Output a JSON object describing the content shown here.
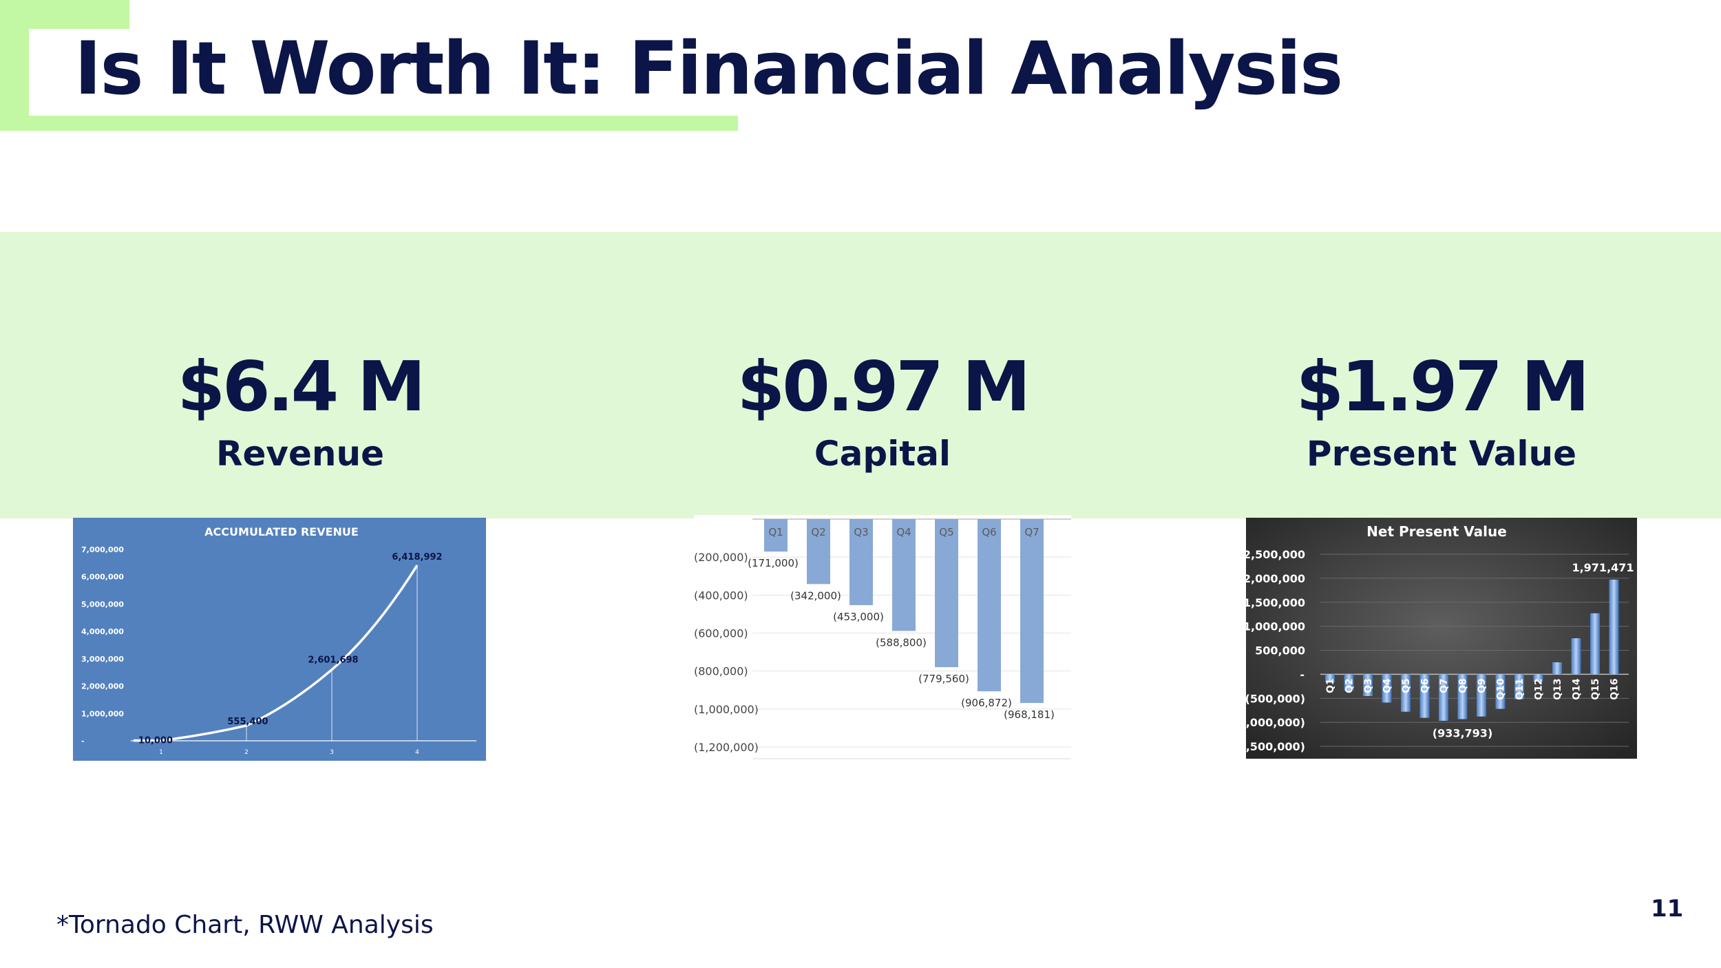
{
  "title": "Is It Worth It: Financial Analysis",
  "metrics": [
    {
      "value": "$6.4 M",
      "label": "Revenue"
    },
    {
      "value": "$0.97 M",
      "label": "Capital"
    },
    {
      "value": "$1.97 M",
      "label": "Present Value"
    }
  ],
  "footnote": "*Tornado Chart, RWW Analysis",
  "page_number": "11",
  "colors": {
    "navy": "#0b1547",
    "accent_green": "#c2f7a3",
    "band_green": "#e0f8d5",
    "revenue_bg": "#5381be",
    "bar_blue": "#88a9d5",
    "npv_bg": "#3a3a3a"
  },
  "chart_data": [
    {
      "type": "line",
      "title": "ACCUMULATED REVENUE",
      "x": [
        1,
        2,
        3,
        4
      ],
      "values": [
        10000,
        555400,
        2601698,
        6418992
      ],
      "data_labels": [
        "10,000",
        "555,400",
        "2,601,698",
        "6,418,992"
      ],
      "ylim": [
        0,
        7000000
      ],
      "yticks": [
        0,
        1000000,
        2000000,
        3000000,
        4000000,
        5000000,
        6000000,
        7000000
      ],
      "ytick_labels": [
        "-",
        "1,000,000",
        "2,000,000",
        "3,000,000",
        "4,000,000",
        "5,000,000",
        "6,000,000",
        "7,000,000"
      ],
      "xtick_labels": [
        "1",
        "2",
        "3",
        "4"
      ],
      "grid": false
    },
    {
      "type": "bar",
      "categories": [
        "Q1",
        "Q2",
        "Q3",
        "Q4",
        "Q5",
        "Q6",
        "Q7"
      ],
      "values": [
        -171000,
        -342000,
        -453000,
        -588800,
        -779560,
        -906872,
        -968181
      ],
      "data_labels": [
        "(171,000)",
        "(342,000)",
        "(453,000)",
        "(588,800)",
        "(779,560)",
        "(906,872)",
        "(968,181)"
      ],
      "ylim": [
        -1200000,
        0
      ],
      "yticks": [
        -200000,
        -400000,
        -600000,
        -800000,
        -1000000,
        -1200000
      ],
      "ytick_labels": [
        "(200,000)",
        "(400,000)",
        "(600,000)",
        "(800,000)",
        "(1,000,000)",
        "(1,200,000)"
      ],
      "grid": true
    },
    {
      "type": "bar",
      "title": "Net Present Value",
      "categories": [
        "Q1",
        "Q2",
        "Q3",
        "Q4",
        "Q5",
        "Q6",
        "Q7",
        "Q8",
        "Q9",
        "Q10",
        "Q11",
        "Q12",
        "Q13",
        "Q14",
        "Q15",
        "Q16"
      ],
      "values": [
        -171000,
        -342000,
        -453000,
        -588800,
        -779560,
        -906872,
        -968181,
        -933793,
        -880000,
        -720000,
        -520000,
        -150000,
        250000,
        750000,
        1270000,
        1971471
      ],
      "labeled_points": [
        {
          "category": "Q8",
          "label": "(933,793)"
        },
        {
          "category": "Q16",
          "label": "1,971,471"
        }
      ],
      "ylim": [
        -1500000,
        2500000
      ],
      "yticks": [
        2500000,
        2000000,
        1500000,
        1000000,
        500000,
        0,
        -500000,
        -1000000,
        -1500000
      ],
      "ytick_labels": [
        "2,500,000",
        "2,000,000",
        "1,500,000",
        "1,000,000",
        "500,000",
        "-",
        "(500,000)",
        "(1,000,000)",
        "(1,500,000)"
      ],
      "grid": true
    }
  ]
}
